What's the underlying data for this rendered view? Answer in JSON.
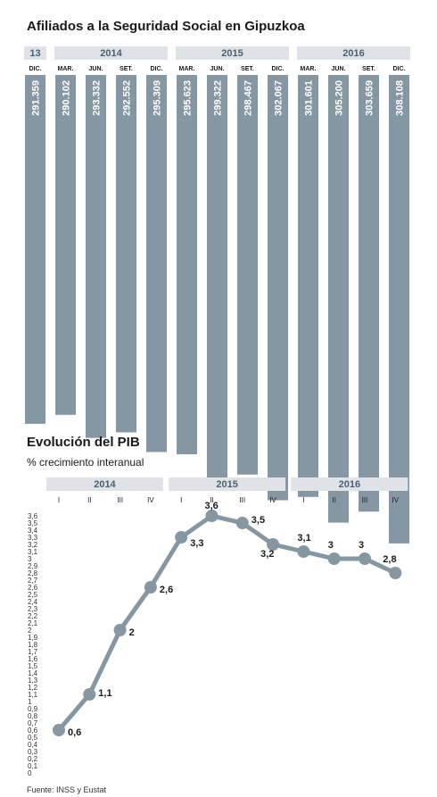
{
  "colors": {
    "bar": "#8597a3",
    "header": "#dfe3e7",
    "header_text": "#4a5f72",
    "line": "#8597a3",
    "point": "#8597a3"
  },
  "chart_data": [
    {
      "type": "bar",
      "title": "Afiliados a la Seguridad Social en Gipuzkoa",
      "year_groups": [
        {
          "label": "13",
          "start": 0,
          "count": 1
        },
        {
          "label": "2014",
          "start": 1,
          "count": 4
        },
        {
          "label": "2015",
          "start": 5,
          "count": 4
        },
        {
          "label": "2016",
          "start": 9,
          "count": 4
        }
      ],
      "categories": [
        "DIC.",
        "MAR.",
        "JUN.",
        "SET.",
        "DIC.",
        "MAR.",
        "JUN.",
        "SET.",
        "DIC.",
        "MAR.",
        "JUN.",
        "SET.",
        "DIC."
      ],
      "values": [
        291359,
        290102,
        293332,
        292552,
        295309,
        295623,
        299322,
        298467,
        302067,
        301601,
        305200,
        303659,
        308108
      ],
      "value_labels": [
        "291.359",
        "290.102",
        "293.332",
        "292.552",
        "295.309",
        "295.623",
        "299.322",
        "298.467",
        "302.067",
        "301.601",
        "305.200",
        "303.659",
        "308.108"
      ]
    },
    {
      "type": "line",
      "title": "Evolución del PIB",
      "subtitle": "% crecimiento interanual",
      "year_groups": [
        {
          "label": "2014",
          "start": 0,
          "count": 4
        },
        {
          "label": "2015",
          "start": 4,
          "count": 4
        },
        {
          "label": "2016",
          "start": 8,
          "count": 4
        }
      ],
      "categories": [
        "I",
        "II",
        "III",
        "IV",
        "I",
        "II",
        "III",
        "IV",
        "I",
        "II",
        "III",
        "IV"
      ],
      "values": [
        0.6,
        1.1,
        2,
        2.6,
        3.3,
        3.6,
        3.5,
        3.2,
        3.1,
        3,
        3,
        2.8
      ],
      "value_labels": [
        "0,6",
        "1,1",
        "2",
        "2,6",
        "3,3",
        "3,6",
        "3,5",
        "3,2",
        "3,1",
        "3",
        "3",
        "2,8"
      ],
      "yticks": [
        "0",
        "0,1",
        "0,2",
        "0,3",
        "0,4",
        "0,5",
        "0,6",
        "0,7",
        "0,8",
        "0,9",
        "1",
        "1,1",
        "1,2",
        "1,3",
        "1,4",
        "1,5",
        "1,6",
        "1,7",
        "1,8",
        "1,9",
        "2",
        "2,1",
        "2,2",
        "2,3",
        "2,4",
        "2,5",
        "2,6",
        "2,7",
        "2,8",
        "2,9",
        "3",
        "3,1",
        "3,2",
        "3,3",
        "3,4",
        "3,5",
        "3,6"
      ],
      "ylim": [
        0,
        3.6
      ]
    }
  ],
  "source": "Fuente: INSS y Eustat"
}
